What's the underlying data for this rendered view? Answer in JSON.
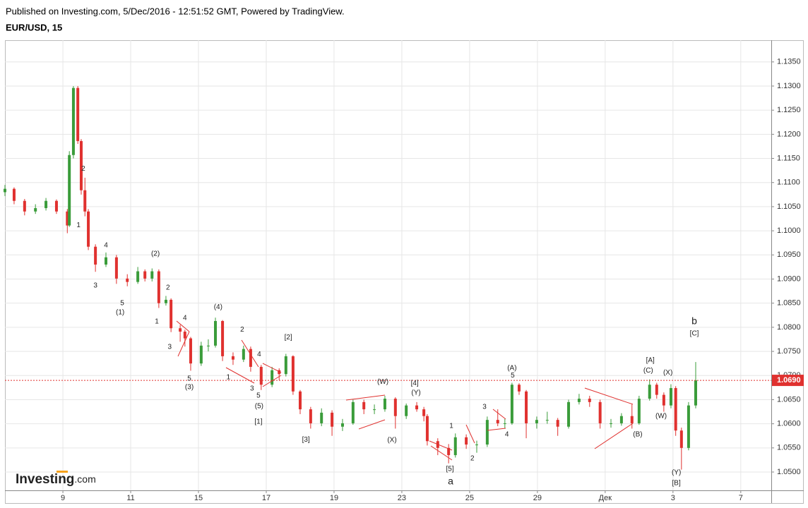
{
  "chart_data": {
    "type": "candlestick",
    "header": "Published on Investing.com, 5/Dec/2016 - 12:51:52 GMT, Powered by TradingView.",
    "title": "EUR/USD, 15",
    "logo": [
      "Investing",
      ".com"
    ],
    "up_color": "#3a9c3a",
    "down_color": "#e0312f",
    "grid": true,
    "ylim": [
      1.0462,
      1.1395
    ],
    "xlim": [
      -1.71,
      20.9
    ],
    "yticks": [
      {
        "value": 1.05,
        "label": "1.0500"
      },
      {
        "value": 1.055,
        "label": "1.0550"
      },
      {
        "value": 1.06,
        "label": "1.0600"
      },
      {
        "value": 1.065,
        "label": "1.0650"
      },
      {
        "value": 1.07,
        "label": "1.0700"
      },
      {
        "value": 1.075,
        "label": "1.0750"
      },
      {
        "value": 1.08,
        "label": "1.0800"
      },
      {
        "value": 1.085,
        "label": "1.0850"
      },
      {
        "value": 1.09,
        "label": "1.0900"
      },
      {
        "value": 1.095,
        "label": "1.0950"
      },
      {
        "value": 1.1,
        "label": "1.1000"
      },
      {
        "value": 1.105,
        "label": "1.1050"
      },
      {
        "value": 1.11,
        "label": "1.1100"
      },
      {
        "value": 1.115,
        "label": "1.1150"
      },
      {
        "value": 1.12,
        "label": "1.1200"
      },
      {
        "value": 1.125,
        "label": "1.1250"
      },
      {
        "value": 1.13,
        "label": "1.1300"
      },
      {
        "value": 1.135,
        "label": "1.1350"
      }
    ],
    "xticks": [
      {
        "value": 0,
        "label": "9"
      },
      {
        "value": 2,
        "label": "11"
      },
      {
        "value": 4,
        "label": "15"
      },
      {
        "value": 6,
        "label": "17"
      },
      {
        "value": 8,
        "label": "19"
      },
      {
        "value": 10,
        "label": "23"
      },
      {
        "value": 12,
        "label": "25"
      },
      {
        "value": 14,
        "label": "29"
      },
      {
        "value": 16,
        "label": "Дек"
      },
      {
        "value": 18,
        "label": "3"
      },
      {
        "value": 20,
        "label": "7"
      }
    ],
    "last_price": {
      "value": 1.069,
      "label": "1.0690"
    },
    "x": [
      -1.71,
      -1.44,
      -1.13,
      -0.81,
      -0.5,
      -0.19,
      0.13,
      0.19,
      0.31,
      0.44,
      0.54,
      0.65,
      0.75,
      0.96,
      1.27,
      1.58,
      1.9,
      2.21,
      2.42,
      2.63,
      2.83,
      3.04,
      3.19,
      3.46,
      3.6,
      3.77,
      4.08,
      4.29,
      4.5,
      4.71,
      5.02,
      5.33,
      5.54,
      5.85,
      6.17,
      6.38,
      6.58,
      6.79,
      7,
      7.31,
      7.63,
      7.94,
      8.25,
      8.56,
      8.88,
      9.19,
      9.5,
      9.81,
      10.13,
      10.44,
      10.65,
      10.75,
      11.06,
      11.38,
      11.58,
      11.9,
      12.21,
      12.52,
      12.83,
      13.04,
      13.25,
      13.46,
      13.67,
      13.98,
      14.29,
      14.6,
      14.92,
      15.23,
      15.54,
      15.85,
      16.17,
      16.48,
      16.79,
      17,
      17.31,
      17.52,
      17.73,
      17.94,
      18.08,
      18.25,
      18.46,
      18.67
    ],
    "open": [
      1.108,
      1.1087,
      1.1062,
      1.104,
      1.1047,
      1.1062,
      1.104,
      1.1011,
      1.1157,
      1.1296,
      1.1186,
      1.1084,
      1.104,
      1.0967,
      1.093,
      1.0945,
      1.0901,
      1.0894,
      1.0916,
      1.0901,
      1.0916,
      1.085,
      1.0857,
      1.0798,
      1.0791,
      1.0777,
      1.0725,
      1.0762,
      1.0762,
      1.0813,
      1.074,
      1.0733,
      1.0755,
      1.0718,
      1.0681,
      1.0711,
      1.0703,
      1.074,
      1.0667,
      1.063,
      1.0601,
      1.0623,
      1.0594,
      1.0601,
      1.0645,
      1.063,
      1.063,
      1.0652,
      1.0616,
      1.0638,
      1.063,
      1.0616,
      1.0564,
      1.055,
      1.0535,
      1.0572,
      1.0557,
      1.0557,
      1.0608,
      1.0601,
      1.0601,
      1.0681,
      1.0667,
      1.0601,
      1.0608,
      1.0608,
      1.0594,
      1.0645,
      1.0652,
      1.0645,
      1.0601,
      1.0601,
      1.0616,
      1.0601,
      1.0652,
      1.0681,
      1.066,
      1.0638,
      1.0674,
      1.0586,
      1.055,
      1.0638
    ],
    "high": [
      1.1095,
      1.109,
      1.1066,
      1.1055,
      1.1068,
      1.1065,
      1.1045,
      1.1165,
      1.13,
      1.13,
      1.119,
      1.111,
      1.1045,
      1.0972,
      1.0955,
      1.095,
      1.091,
      1.0925,
      1.092,
      1.0922,
      1.092,
      1.0865,
      1.086,
      1.0805,
      1.0795,
      1.078,
      1.077,
      1.0775,
      1.082,
      1.0815,
      1.0748,
      1.0762,
      1.076,
      1.0722,
      1.0718,
      1.0715,
      1.0745,
      1.0742,
      1.067,
      1.0635,
      1.0632,
      1.0628,
      1.061,
      1.065,
      1.065,
      1.064,
      1.0658,
      1.0655,
      1.0642,
      1.0645,
      1.0635,
      1.062,
      1.057,
      1.0558,
      1.058,
      1.0578,
      1.0565,
      1.0615,
      1.063,
      1.061,
      1.0685,
      1.0684,
      1.067,
      1.0615,
      1.0625,
      1.0612,
      1.065,
      1.0662,
      1.0658,
      1.065,
      1.061,
      1.0622,
      1.064,
      1.0658,
      1.0692,
      1.0685,
      1.0665,
      1.0682,
      1.0678,
      1.0592,
      1.0645,
      1.0728
    ],
    "low": [
      1.1072,
      1.1055,
      1.1032,
      1.1035,
      1.1042,
      1.1035,
      1.0995,
      1.1008,
      1.115,
      1.118,
      1.1075,
      1.103,
      1.096,
      1.0915,
      1.0925,
      1.089,
      1.0885,
      1.089,
      1.0895,
      1.0895,
      1.084,
      1.0845,
      1.079,
      1.077,
      1.076,
      1.071,
      1.072,
      1.075,
      1.0758,
      1.073,
      1.0722,
      1.0728,
      1.0708,
      1.067,
      1.0676,
      1.069,
      1.0698,
      1.066,
      1.062,
      1.059,
      1.0595,
      1.0575,
      1.0585,
      1.0598,
      1.062,
      1.062,
      1.0625,
      1.059,
      1.061,
      1.0625,
      1.0605,
      1.0555,
      1.0535,
      1.0518,
      1.053,
      1.0548,
      1.054,
      1.0552,
      1.0595,
      1.059,
      1.0598,
      1.066,
      1.057,
      1.059,
      1.06,
      1.0575,
      1.059,
      1.064,
      1.0635,
      1.059,
      1.0592,
      1.0596,
      1.059,
      1.0598,
      1.0648,
      1.0652,
      1.0625,
      1.0632,
      1.0575,
      1.0505,
      1.0545,
      1.0632
    ],
    "close": [
      1.1087,
      1.1062,
      1.104,
      1.1047,
      1.1062,
      1.104,
      1.1011,
      1.1157,
      1.1296,
      1.1186,
      1.1084,
      1.104,
      1.0967,
      1.093,
      1.0945,
      1.0901,
      1.0894,
      1.0916,
      1.0901,
      1.0916,
      1.085,
      1.0857,
      1.0798,
      1.0791,
      1.0777,
      1.0725,
      1.0762,
      1.0762,
      1.0813,
      1.074,
      1.0733,
      1.0755,
      1.0718,
      1.0681,
      1.0711,
      1.0703,
      1.074,
      1.0667,
      1.063,
      1.0601,
      1.0623,
      1.0594,
      1.0601,
      1.0645,
      1.063,
      1.063,
      1.0652,
      1.0616,
      1.0638,
      1.063,
      1.0616,
      1.0564,
      1.055,
      1.0535,
      1.0572,
      1.0557,
      1.0557,
      1.0608,
      1.0601,
      1.0601,
      1.0681,
      1.0667,
      1.0601,
      1.0608,
      1.0608,
      1.0594,
      1.0645,
      1.0652,
      1.0645,
      1.0601,
      1.0601,
      1.0616,
      1.0601,
      1.0652,
      1.0681,
      1.066,
      1.0638,
      1.0674,
      1.0586,
      1.055,
      1.0638,
      1.069
    ],
    "annotations": [
      {
        "text": "2",
        "x": 0.6,
        "y": 1.1128
      },
      {
        "text": "1",
        "x": 0.46,
        "y": 1.1011
      },
      {
        "text": "4",
        "x": 1.27,
        "y": 1.097
      },
      {
        "text": "3",
        "x": 0.96,
        "y": 1.0886
      },
      {
        "text": "5",
        "x": 1.75,
        "y": 1.085
      },
      {
        "text": "(1)",
        "x": 1.69,
        "y": 1.0831
      },
      {
        "text": "(2)",
        "x": 2.73,
        "y": 1.0952
      },
      {
        "text": "2",
        "x": 3.1,
        "y": 1.0882
      },
      {
        "text": "1",
        "x": 2.77,
        "y": 1.0812
      },
      {
        "text": "4",
        "x": 3.6,
        "y": 1.0819
      },
      {
        "text": "3",
        "x": 3.15,
        "y": 1.0759
      },
      {
        "text": "5",
        "x": 3.73,
        "y": 1.0693
      },
      {
        "text": "(3)",
        "x": 3.73,
        "y": 1.0676
      },
      {
        "text": "(4)",
        "x": 4.58,
        "y": 1.0842
      },
      {
        "text": "2",
        "x": 5.29,
        "y": 1.0795
      },
      {
        "text": "4",
        "x": 5.79,
        "y": 1.0744
      },
      {
        "text": "1",
        "x": 4.88,
        "y": 1.0696
      },
      {
        "text": "3",
        "x": 5.58,
        "y": 1.0673
      },
      {
        "text": "5",
        "x": 5.77,
        "y": 1.0658
      },
      {
        "text": "(5)",
        "x": 5.79,
        "y": 1.0636
      },
      {
        "text": "[1]",
        "x": 5.77,
        "y": 1.0604
      },
      {
        "text": "[2]",
        "x": 6.65,
        "y": 1.0779
      },
      {
        "text": "[3]",
        "x": 7.17,
        "y": 1.0567
      },
      {
        "text": "(W)",
        "x": 9.44,
        "y": 1.0687
      },
      {
        "text": "[4]",
        "x": 10.38,
        "y": 1.0684
      },
      {
        "text": "(Y)",
        "x": 10.42,
        "y": 1.0664
      },
      {
        "text": "(X)",
        "x": 9.71,
        "y": 1.0566
      },
      {
        "text": "1",
        "x": 11.46,
        "y": 1.0595
      },
      {
        "text": "[5]",
        "x": 11.42,
        "y": 1.0506
      },
      {
        "text": "a",
        "x": 11.44,
        "y": 1.048,
        "big": true
      },
      {
        "text": "2",
        "x": 12.08,
        "y": 1.0528
      },
      {
        "text": "3",
        "x": 12.44,
        "y": 1.0635
      },
      {
        "text": "4",
        "x": 13.1,
        "y": 1.0578
      },
      {
        "text": "(A)",
        "x": 13.25,
        "y": 1.0715
      },
      {
        "text": "5",
        "x": 13.27,
        "y": 1.07
      },
      {
        "text": "(B)",
        "x": 16.96,
        "y": 1.0578
      },
      {
        "text": "[A]",
        "x": 17.33,
        "y": 1.0731
      },
      {
        "text": "(C)",
        "x": 17.27,
        "y": 1.071
      },
      {
        "text": "(X)",
        "x": 17.85,
        "y": 1.0706
      },
      {
        "text": "(W)",
        "x": 17.65,
        "y": 1.0616
      },
      {
        "text": "(Y)",
        "x": 18.1,
        "y": 1.0499
      },
      {
        "text": "[B]",
        "x": 18.1,
        "y": 1.0477
      },
      {
        "text": "b",
        "x": 18.63,
        "y": 1.0812,
        "big": true
      },
      {
        "text": "[C]",
        "x": 18.63,
        "y": 1.0787
      }
    ]
  }
}
